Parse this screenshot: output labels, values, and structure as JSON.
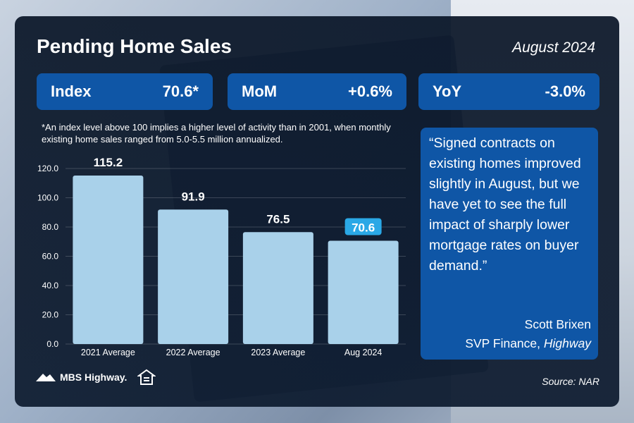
{
  "header": {
    "title": "Pending Home Sales",
    "date": "August 2024"
  },
  "stats": [
    {
      "label": "Index",
      "value": "70.6*"
    },
    {
      "label": "MoM",
      "value": "+0.6%"
    },
    {
      "label": "YoY",
      "value": "-3.0%"
    }
  ],
  "footnote": "*An index level above 100 implies a higher level of activity than in 2001, when monthly existing home sales ranged from 5.0-5.5 million annualized.",
  "quote": {
    "text": "“Signed contracts on existing homes improved slightly in August, but we have yet to see the full impact of sharply lower mortgage rates on buyer demand.”",
    "author": "Scott Brixen",
    "role": "SVP Finance, ",
    "company": "Highway"
  },
  "footer": {
    "logo_text": "MBS Highway.",
    "source": "Source: NAR"
  },
  "colors": {
    "bar": "#a9d1ea",
    "highlight_label": "#2aa8e6",
    "panel": "#0f56a6"
  },
  "chart_data": {
    "type": "bar",
    "categories": [
      "2021 Average",
      "2022 Average",
      "2023 Average",
      "Aug 2024"
    ],
    "values": [
      115.2,
      91.9,
      76.5,
      70.6
    ],
    "value_labels": [
      "115.2",
      "91.9",
      "76.5",
      "70.6"
    ],
    "highlight_index": 3,
    "ylim": [
      0,
      120
    ],
    "yticks": [
      0,
      20,
      40,
      60,
      80,
      100,
      120
    ],
    "ytick_labels": [
      "0.0",
      "20.0",
      "40.0",
      "60.0",
      "80.0",
      "100.0",
      "120.0"
    ],
    "grid": true
  }
}
